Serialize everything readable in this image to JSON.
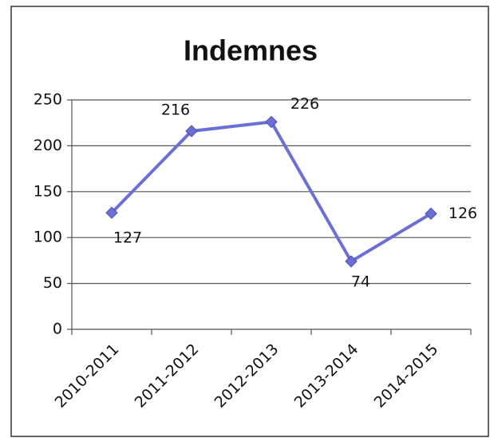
{
  "chart_data": {
    "type": "line",
    "title": "Indemnes",
    "categories": [
      "2010-2011",
      "2011-2012",
      "2012-2013",
      "2013-2014",
      "2014-2015"
    ],
    "values": [
      127,
      216,
      226,
      74,
      126
    ],
    "color": "#6b70d6",
    "ylim": [
      0,
      250
    ],
    "yticks": [
      0,
      50,
      100,
      150,
      200,
      250
    ],
    "grid": true
  }
}
